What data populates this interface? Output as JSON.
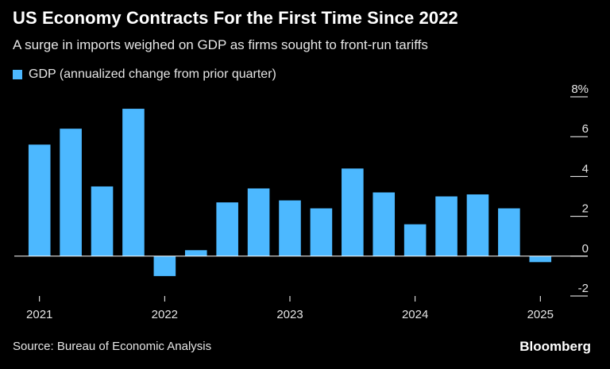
{
  "header": {
    "title": "US Economy Contracts For the First Time Since 2022",
    "subtitle": "A surge in imports weighed on GDP as firms sought to front-run tariffs"
  },
  "footer": {
    "source": "Source: Bureau of Economic Analysis",
    "brand": "Bloomberg"
  },
  "colors": {
    "bar": "#4cb8ff",
    "background": "#000000",
    "axis": "#ffffff"
  },
  "chart_data": {
    "type": "bar",
    "series": [
      {
        "name": "GDP (annualized change from prior quarter)",
        "values": [
          5.6,
          6.4,
          3.5,
          7.4,
          -1.0,
          0.3,
          2.7,
          3.4,
          2.8,
          2.4,
          4.4,
          3.2,
          1.6,
          3.0,
          3.1,
          2.4,
          -0.3
        ]
      }
    ],
    "categories": [
      "2021 Q1",
      "2021 Q2",
      "2021 Q3",
      "2021 Q4",
      "2022 Q1",
      "2022 Q2",
      "2022 Q3",
      "2022 Q4",
      "2023 Q1",
      "2023 Q2",
      "2023 Q3",
      "2023 Q4",
      "2024 Q1",
      "2024 Q2",
      "2024 Q3",
      "2024 Q4",
      "2025 Q1"
    ],
    "x_tick_labels": [
      "2021",
      "2022",
      "2023",
      "2024",
      "2025"
    ],
    "y_ticks": [
      -2,
      0,
      2,
      4,
      6,
      8
    ],
    "y_tick_labels": [
      "-2",
      "0",
      "2",
      "4",
      "6",
      "8%"
    ],
    "ylim": [
      -2,
      8
    ],
    "xlabel": "",
    "ylabel": "",
    "grid": false,
    "legend_position": "top-left"
  }
}
